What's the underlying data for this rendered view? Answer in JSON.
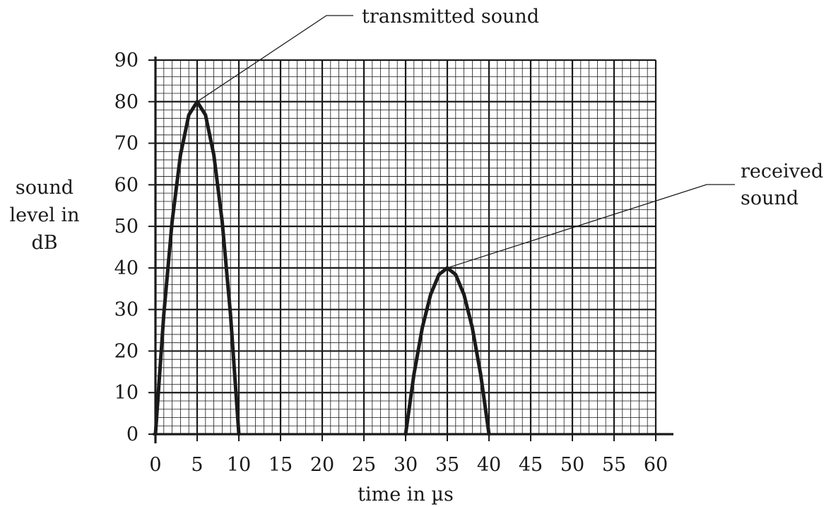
{
  "chart_data": {
    "type": "line",
    "xlabel": "time in µs",
    "ylabel_lines": [
      "sound",
      "level in",
      "dB"
    ],
    "xlim": [
      0,
      60
    ],
    "ylim": [
      0,
      90
    ],
    "x_ticks": [
      "0",
      "5",
      "10",
      "15",
      "20",
      "25",
      "30",
      "35",
      "40",
      "45",
      "50",
      "55",
      "60"
    ],
    "y_ticks": [
      "0",
      "10",
      "20",
      "30",
      "40",
      "50",
      "60",
      "70",
      "80",
      "90"
    ],
    "grid": true,
    "series": [
      {
        "x": [
          0,
          1,
          2,
          3,
          4,
          5,
          6,
          7,
          8,
          9,
          10
        ],
        "y": [
          0,
          28.8,
          51.2,
          67.2,
          76.8,
          80,
          76.8,
          67.2,
          51.2,
          28.8,
          0
        ]
      },
      {
        "x": [
          30,
          31,
          32,
          33,
          34,
          35,
          36,
          37,
          38,
          39,
          40
        ],
        "y": [
          0,
          14.4,
          25.6,
          33.6,
          38.4,
          40,
          38.4,
          33.6,
          25.6,
          14.4,
          0
        ]
      }
    ],
    "annotations": [
      {
        "lines": [
          "transmitted sound"
        ],
        "point": [
          5,
          80
        ]
      },
      {
        "lines": [
          "received",
          "sound"
        ],
        "point": [
          35,
          40
        ]
      }
    ],
    "colors": {
      "line": "#1a1a1a",
      "grid": "#1a1a1a"
    }
  }
}
